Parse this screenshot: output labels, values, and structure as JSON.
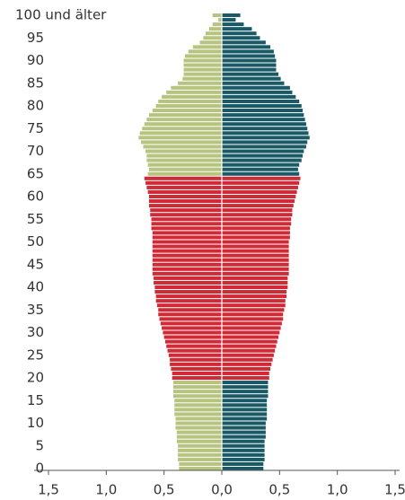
{
  "chart_data": {
    "type": "pyramid",
    "y": [
      0,
      1,
      2,
      3,
      4,
      5,
      6,
      7,
      8,
      9,
      10,
      11,
      12,
      13,
      14,
      15,
      16,
      17,
      18,
      19,
      20,
      21,
      22,
      23,
      24,
      25,
      26,
      27,
      28,
      29,
      30,
      31,
      32,
      33,
      34,
      35,
      36,
      37,
      38,
      39,
      40,
      41,
      42,
      43,
      44,
      45,
      46,
      47,
      48,
      49,
      50,
      51,
      52,
      53,
      54,
      55,
      56,
      57,
      58,
      59,
      60,
      61,
      62,
      63,
      64,
      65,
      66,
      67,
      68,
      69,
      70,
      71,
      72,
      73,
      74,
      75,
      76,
      77,
      78,
      79,
      80,
      81,
      82,
      83,
      84,
      85,
      86,
      87,
      88,
      89,
      90,
      91,
      92,
      93,
      94,
      95,
      96,
      97,
      98,
      99,
      100
    ],
    "series": [
      {
        "side": "left",
        "color": "#b6c47f",
        "values": [
          0.37,
          0.37,
          0.38,
          0.38,
          0.38,
          0.38,
          0.39,
          0.39,
          0.39,
          0.4,
          0.4,
          0.4,
          0.41,
          0.41,
          0.41,
          0.41,
          0.42,
          0.42,
          0.42,
          0.42,
          0.43,
          0.43,
          0.44,
          0.45,
          0.45,
          0.46,
          0.47,
          0.48,
          0.49,
          0.5,
          0.51,
          0.52,
          0.53,
          0.54,
          0.55,
          0.55,
          0.56,
          0.57,
          0.57,
          0.58,
          0.58,
          0.59,
          0.59,
          0.6,
          0.6,
          0.6,
          0.6,
          0.6,
          0.6,
          0.6,
          0.6,
          0.6,
          0.6,
          0.61,
          0.61,
          0.61,
          0.62,
          0.62,
          0.63,
          0.63,
          0.63,
          0.64,
          0.65,
          0.66,
          0.67,
          0.64,
          0.63,
          0.64,
          0.65,
          0.65,
          0.66,
          0.68,
          0.7,
          0.72,
          0.71,
          0.69,
          0.67,
          0.65,
          0.63,
          0.6,
          0.57,
          0.55,
          0.52,
          0.48,
          0.44,
          0.38,
          0.34,
          0.33,
          0.33,
          0.33,
          0.33,
          0.32,
          0.29,
          0.25,
          0.19,
          0.16,
          0.14,
          0.11,
          0.08,
          0.03,
          0.08
        ]
      },
      {
        "side": "right",
        "color": "#195a66",
        "values": [
          0.36,
          0.36,
          0.37,
          0.37,
          0.37,
          0.37,
          0.37,
          0.38,
          0.38,
          0.38,
          0.38,
          0.39,
          0.39,
          0.39,
          0.39,
          0.39,
          0.4,
          0.4,
          0.4,
          0.4,
          0.41,
          0.41,
          0.42,
          0.43,
          0.44,
          0.45,
          0.46,
          0.47,
          0.48,
          0.49,
          0.5,
          0.51,
          0.52,
          0.53,
          0.53,
          0.54,
          0.55,
          0.55,
          0.56,
          0.56,
          0.57,
          0.57,
          0.57,
          0.58,
          0.58,
          0.58,
          0.58,
          0.58,
          0.58,
          0.58,
          0.58,
          0.59,
          0.59,
          0.59,
          0.6,
          0.6,
          0.61,
          0.61,
          0.62,
          0.63,
          0.64,
          0.65,
          0.66,
          0.67,
          0.68,
          0.67,
          0.66,
          0.67,
          0.69,
          0.7,
          0.71,
          0.73,
          0.74,
          0.76,
          0.75,
          0.74,
          0.73,
          0.72,
          0.71,
          0.7,
          0.69,
          0.67,
          0.64,
          0.61,
          0.59,
          0.54,
          0.51,
          0.49,
          0.47,
          0.47,
          0.47,
          0.46,
          0.45,
          0.42,
          0.38,
          0.33,
          0.3,
          0.26,
          0.19,
          0.12,
          0.16
        ]
      }
    ],
    "highlight": {
      "from": 20,
      "to": 64,
      "color": "#d12a37"
    },
    "xlim": [
      -1.5,
      1.5
    ],
    "xticks": [
      {
        "value": -1.5,
        "label": "1,5"
      },
      {
        "value": -1.0,
        "label": "1,0"
      },
      {
        "value": -0.5,
        "label": "0,5"
      },
      {
        "value": 0,
        "label": "0,0"
      },
      {
        "value": 0.5,
        "label": "0,5"
      },
      {
        "value": 1.0,
        "label": "1,0"
      },
      {
        "value": 1.5,
        "label": "1,5"
      }
    ],
    "ylim": [
      0,
      100
    ],
    "yticks": [
      0,
      5,
      10,
      15,
      20,
      25,
      30,
      35,
      40,
      45,
      50,
      55,
      60,
      65,
      70,
      75,
      80,
      85,
      90,
      95,
      {
        "value": 100,
        "label": "100 und älter"
      }
    ]
  }
}
